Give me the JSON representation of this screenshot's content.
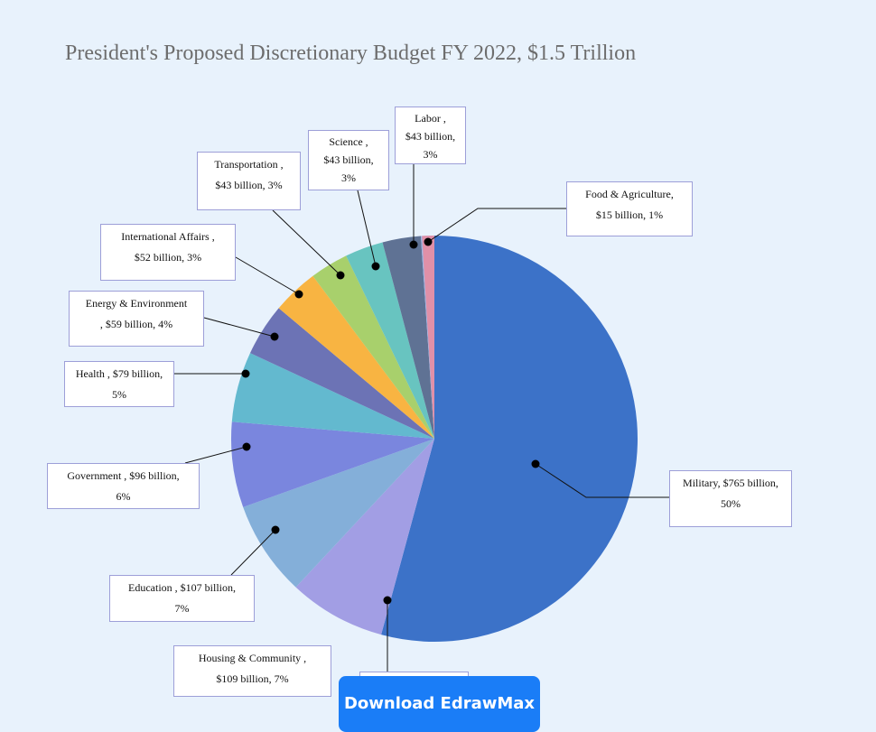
{
  "chart_data": {
    "type": "pie",
    "title": "President's Proposed Discretionary Budget FY 2022, $1.5 Trillion",
    "slices": [
      {
        "name": "Military",
        "value": 765,
        "percent": 50,
        "value_text": "$765 billion",
        "percent_text": "50%",
        "color": "#3c72c8"
      },
      {
        "name": "Housing & Community",
        "value": 109,
        "percent": 7,
        "value_text": "$109 billion",
        "percent_text": "7%",
        "color": "#a29ee4"
      },
      {
        "name": "Education",
        "value": 107,
        "percent": 7,
        "value_text": "$107 billion",
        "percent_text": "7%",
        "color": "#84afd9"
      },
      {
        "name": "Government",
        "value": 96,
        "percent": 6,
        "value_text": "$96 billion",
        "percent_text": "6%",
        "color": "#7a86de"
      },
      {
        "name": "Health",
        "value": 79,
        "percent": 5,
        "value_text": "$79 billion",
        "percent_text": "5%",
        "color": "#63b9cf"
      },
      {
        "name": "Energy & Environment",
        "value": 59,
        "percent": 4,
        "value_text": "$59 billion",
        "percent_text": "4%",
        "color": "#6c73b5"
      },
      {
        "name": "International Affairs",
        "value": 52,
        "percent": 3,
        "value_text": "$52 billion",
        "percent_text": "3%",
        "color": "#f8b442"
      },
      {
        "name": "Transportation",
        "value": 43,
        "percent": 3,
        "value_text": "$43 billion",
        "percent_text": "3%",
        "color": "#a8d06c"
      },
      {
        "name": "Science",
        "value": 43,
        "percent": 3,
        "value_text": "$43 billion",
        "percent_text": "3%",
        "color": "#68c4c0"
      },
      {
        "name": "Labor",
        "value": 43,
        "percent": 3,
        "value_text": "$43 billion",
        "percent_text": "3%",
        "color": "#5f7294"
      },
      {
        "name": "Food & Agriculture",
        "value": 15,
        "percent": 1,
        "value_text": "$15 billion",
        "percent_text": "1%",
        "color": "#9eb4e4"
      }
    ],
    "label_texts": [
      {
        "series": "Military",
        "lines": [
          "Military, $765 billion,",
          "50%"
        ]
      },
      {
        "series": "Housing & Community",
        "lines": [
          "Housing & Community ,",
          "$109 billion, 7%"
        ]
      },
      {
        "series": "Education",
        "lines": [
          "Education , $107 billion,",
          "7%"
        ]
      },
      {
        "series": "Government",
        "lines": [
          "Government , $96 billion,",
          "6%"
        ]
      },
      {
        "series": "Health",
        "lines": [
          "Health , $79 billion,",
          "5%"
        ]
      },
      {
        "series": "Energy & Environment",
        "lines": [
          "Energy & Environment",
          ", $59 billion, 4%"
        ]
      },
      {
        "series": "International Affairs",
        "lines": [
          "International Affairs ,",
          "$52 billion, 3%"
        ]
      },
      {
        "series": "Transportation",
        "lines": [
          "Transportation  ,",
          "$43 billion, 3%"
        ]
      },
      {
        "series": "Science",
        "lines": [
          "Science   ,",
          "$43 billion,",
          "3%"
        ]
      },
      {
        "series": "Labor",
        "lines": [
          "Labor    ,",
          "$43 billion,",
          "3%"
        ]
      },
      {
        "series": "Food & Agriculture",
        "lines": [
          "Food & Agriculture,",
          "$15 billion, 1%"
        ]
      }
    ],
    "extra_slice_color": "#e090a8"
  },
  "download_button": {
    "label": "Download EdrawMax"
  },
  "colors": {
    "background": "#e8f2fc",
    "label_border": "#9d9fd8",
    "button": "#1a7df7"
  }
}
